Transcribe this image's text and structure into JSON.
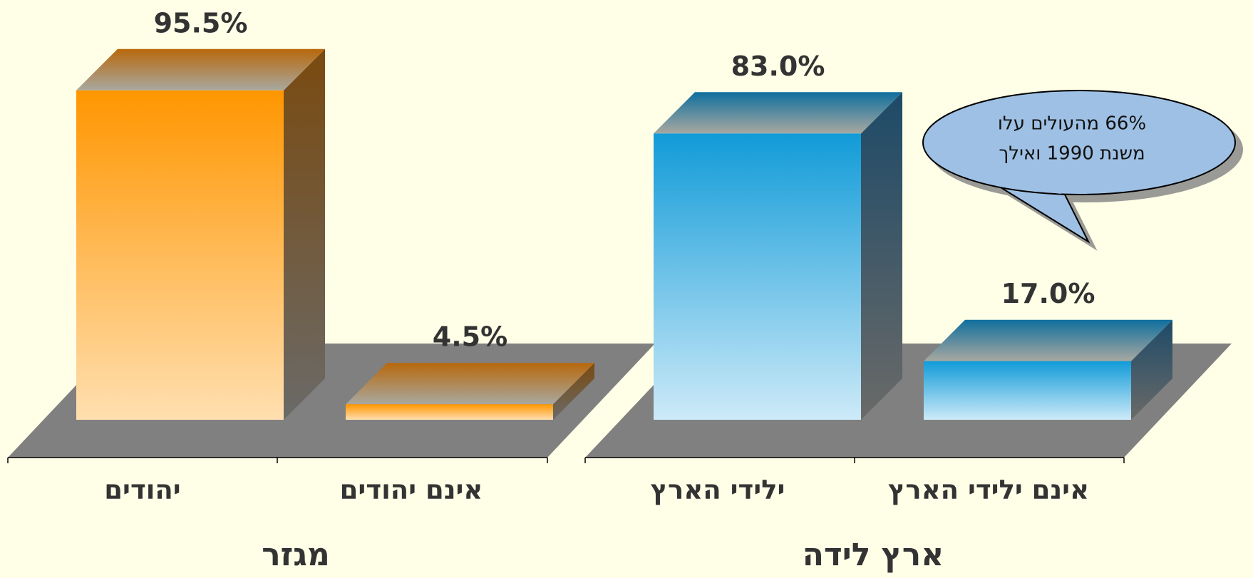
{
  "chart_data": [
    {
      "type": "bar",
      "title": "מגזר",
      "categories": [
        "יהודים",
        "אינם יהודים"
      ],
      "values": [
        95.5,
        4.5
      ],
      "value_labels": [
        "95.5%",
        "4.5%"
      ],
      "colors": {
        "front_top": "#ff9600",
        "front_bottom": "#ffdfb0",
        "side": "#7a4a10",
        "top": "#b8680c"
      }
    },
    {
      "type": "bar",
      "title": "ארץ לידה",
      "categories": [
        "ילידי הארץ",
        "אינם ילידי הארץ"
      ],
      "values": [
        83.0,
        17.0
      ],
      "value_labels": [
        "83.0%",
        "17.0%"
      ],
      "colors": {
        "front_top": "#119bd8",
        "front_bottom": "#cdeaf8",
        "side": "#1d4a68",
        "top": "#106f9e"
      },
      "annotation": [
        "66% מהעולים עלו",
        "משנת 1990 ואילך"
      ]
    }
  ]
}
